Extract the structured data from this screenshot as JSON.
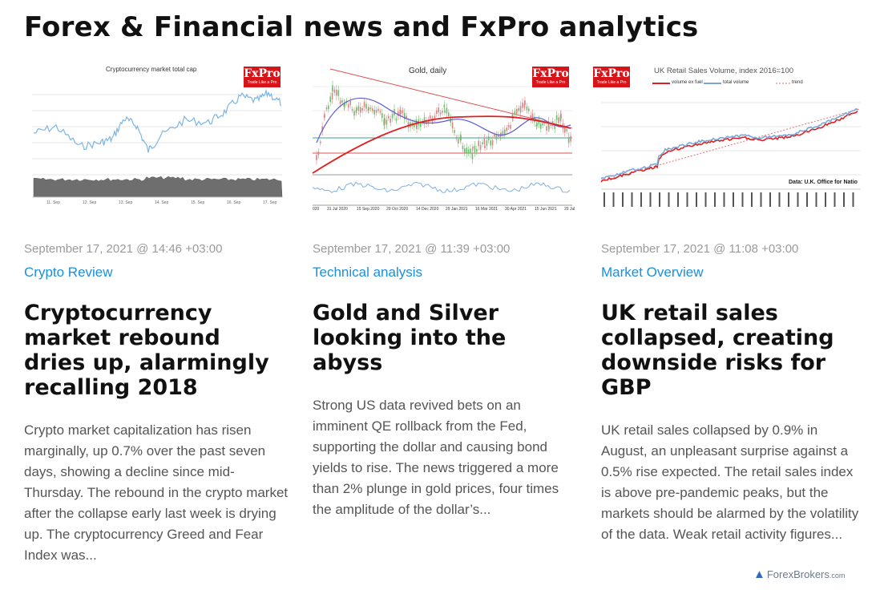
{
  "page": {
    "heading": "Forex & Financial news and FxPro analytics"
  },
  "logo": {
    "name": "FxPro",
    "tagline": "Trade Like a Pro"
  },
  "articles": [
    {
      "thumb_title": "Cryptocurrency market total cap",
      "thumb_xlabels": [
        "11. Sep",
        "12. Sep",
        "13. Sep",
        "14. Sep",
        "15. Sep",
        "16. Sep",
        "17. Sep"
      ],
      "date": "September 17, 2021 @ 14:46 +03:00",
      "category": "Crypto Review",
      "title": "Cryptocurrency market rebound dries up, alarmingly recalling 2018",
      "excerpt": "Crypto market capitalization has risen marginally, up 0.7% over the past seven days, showing a decline since mid-Thursday. The rebound in the crypto market after the collapse early last week is drying up. The cryptocurrency Greed and Fear Index was..."
    },
    {
      "thumb_title": "Gold, daily",
      "thumb_xlabels": [
        "020",
        "31 Jul 2020",
        "15 Sep 2020",
        "29 Oct 2020",
        "14 Dec 2020",
        "29 Jan 2021",
        "16 Mar 2021",
        "30 Apr 2021",
        "15 Jun 2021",
        "29 Jul"
      ],
      "date": "September 17, 2021 @ 11:39 +03:00",
      "category": "Technical analysis",
      "title": "Gold and Silver looking into the abyss",
      "excerpt": "Strong US data revived bets on an imminent QE rollback from the Fed, supporting the dollar and causing bond yields to rise. The news triggered a more than 2% plunge in gold prices, four times the amplitude of the dollar’s..."
    },
    {
      "thumb_title": "UK Retail Sales Volume, index 2016=100",
      "thumb_legend": [
        "volume ex fuel",
        "total volume",
        "trend"
      ],
      "thumb_source": "Data: U.K. Office for Natio",
      "date": "September 17, 2021 @ 11:08 +03:00",
      "category": "Market Overview",
      "title": "UK retail sales collapsed, creating downside risks for GBP",
      "excerpt": "UK retail sales collapsed by 0.9% in August, an unpleasant surprise against a 0.5% rise expected. The retail sales index is above pre-pandemic peaks, but the markets should be alarmed by the volatility of the data. Weak retail activity figures..."
    }
  ],
  "watermark": {
    "brand": "ForexBrokers",
    "suffix": ".com"
  },
  "colors": {
    "accent": "#1a8fdd",
    "brand_red": "#d7141a"
  },
  "icons": {
    "watermark": "forexbrokers-logo-icon"
  }
}
